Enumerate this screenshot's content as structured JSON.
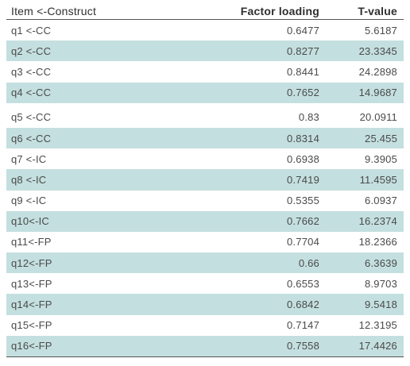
{
  "table": {
    "headers": [
      "Item <-Construct",
      "Factor loading",
      "T-value"
    ],
    "rows": [
      [
        "q1 <-CC",
        "0.6477",
        "5.6187"
      ],
      [
        "q2 <-CC",
        "0.8277",
        "23.3345"
      ],
      [
        "q3 <-CC",
        "0.8441",
        "24.2898"
      ],
      [
        "q4 <-CC",
        "0.7652",
        "14.9687"
      ],
      [
        "q5 <-CC",
        "0.83",
        "20.0911"
      ],
      [
        "q6 <-CC",
        "0.8314",
        "25.455"
      ],
      [
        "q7 <-IC",
        "0.6938",
        "9.3905"
      ],
      [
        "q8 <-IC",
        "0.7419",
        "11.4595"
      ],
      [
        "q9 <-IC",
        "0.5355",
        "6.0937"
      ],
      [
        "q10<-IC",
        "0.7662",
        "16.2374"
      ],
      [
        "q11<-FP",
        "0.7704",
        "18.2366"
      ],
      [
        "q12<-FP",
        "0.66",
        "6.3639"
      ],
      [
        "q13<-FP",
        "0.6553",
        "8.9703"
      ],
      [
        "q14<-FP",
        "0.6842",
        "9.5418"
      ],
      [
        "q15<-FP",
        "0.7147",
        "12.3195"
      ],
      [
        "q16<-FP",
        "0.7558",
        "17.4426"
      ]
    ]
  },
  "colors": {
    "shade": "#c4dfdf",
    "rule": "#555555",
    "text": "#4a4a4a"
  }
}
